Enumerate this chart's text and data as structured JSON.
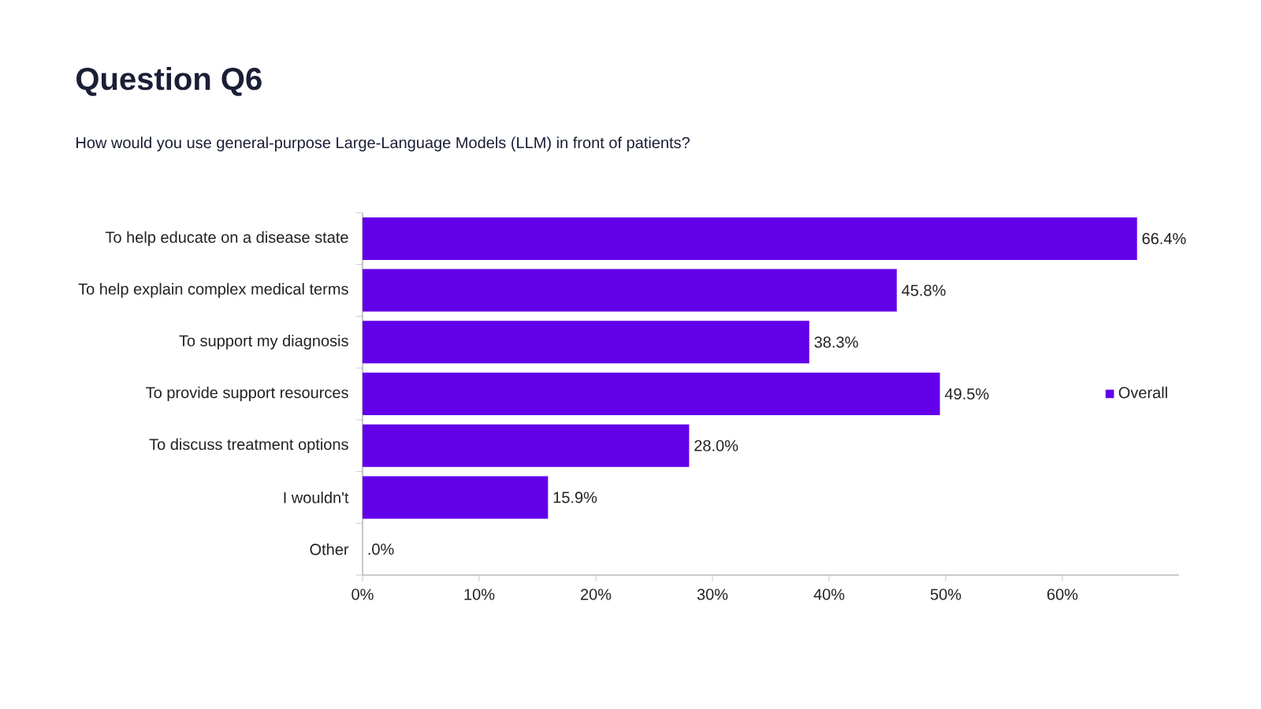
{
  "chart_data": {
    "type": "bar",
    "orientation": "horizontal",
    "title": "Question Q6",
    "subtitle": "How would you use general-purpose Large-Language Models (LLM) in front of patients?",
    "categories": [
      "To help educate on a disease state",
      "To help explain complex medical terms",
      "To support my diagnosis",
      "To provide support resources",
      "To discuss treatment options",
      "I wouldn't",
      "Other"
    ],
    "series": [
      {
        "name": "Overall",
        "color": "#6200ea",
        "values": [
          66.4,
          45.8,
          38.3,
          49.5,
          28.0,
          15.9,
          0.0
        ],
        "value_labels": [
          "66.4%",
          "45.8%",
          "38.3%",
          "49.5%",
          "28.0%",
          "15.9%",
          ".0%"
        ]
      }
    ],
    "xlim": [
      0,
      70
    ],
    "xticks": [
      {
        "value": 0,
        "label": "0%"
      },
      {
        "value": 10,
        "label": "10%"
      },
      {
        "value": 20,
        "label": "20%"
      },
      {
        "value": 30,
        "label": "30%"
      },
      {
        "value": 40,
        "label": "40%"
      },
      {
        "value": 50,
        "label": "50%"
      },
      {
        "value": 60,
        "label": "60%"
      }
    ],
    "legend": "right"
  }
}
